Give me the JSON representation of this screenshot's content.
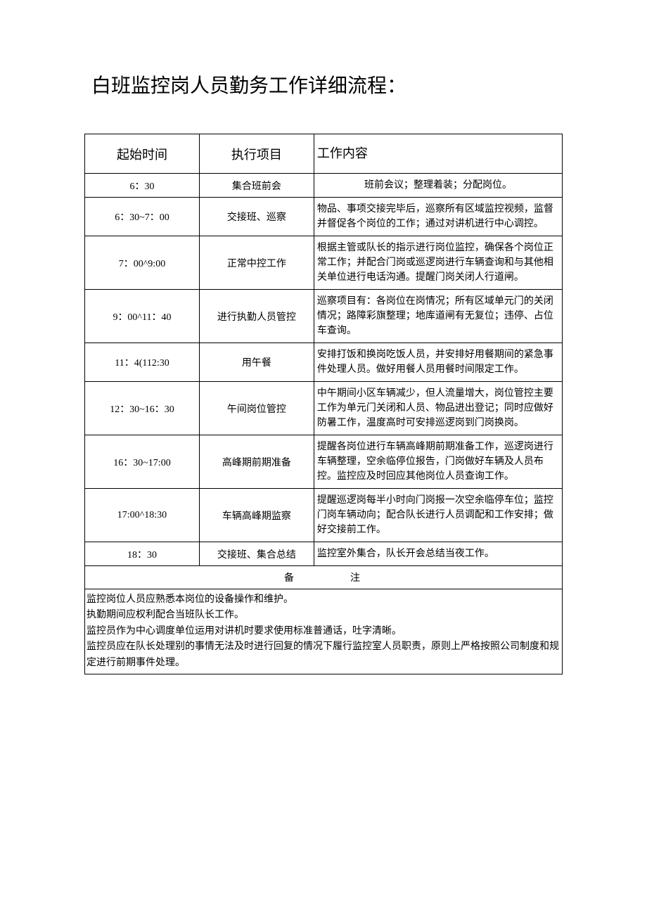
{
  "title": "白班监控岗人员勤务工作详细流程：",
  "headers": {
    "time": "起始时间",
    "item": "执行项目",
    "content": "工作内容"
  },
  "rows": [
    {
      "time": "6：30",
      "item": "集合班前会",
      "content": "班前会议；整理着装；分配岗位。"
    },
    {
      "time": "6：30~7：00",
      "item": "交接班、巡察",
      "content": "物品、事项交接完毕后，巡察所有区域监控视频，监督并督促各个岗位的工作；通过对讲机进行中心调控。"
    },
    {
      "time": "7：00^9:00",
      "item": "正常中控工作",
      "content": "根据主管或队长的指示进行岗位监控，确保各个岗位正常工作；并配合门岗或巡逻岗进行车辆查询和与其他相关单位进行电话沟通。提醒门岗关闭人行道闸。"
    },
    {
      "time": "9：00^11：40",
      "item": "进行执勤人员管控",
      "content": "巡察项目有：各岗位在岗情况；所有区域单元门的关闭情况；路障彩旗整理；地库道闸有无复位；违停、占位车查询。"
    },
    {
      "time": "11：4(112:30",
      "item": "用午餐",
      "content": "安排打饭和换岗吃饭人员，并安排好用餐期间的紧急事件处理人员。做好用餐人员用餐时间限定工作。"
    },
    {
      "time": "12：30~16：30",
      "item": "午间岗位管控",
      "content": "中午期间小区车辆减少，但人流量增大，岗位管控主要工作为单元门关闭和人员、物品进出登记；同时应做好防暑工作，温度高时可安排巡逻岗到门岗换岗。"
    },
    {
      "time": "16：30~17:00",
      "item": "高峰期前期准备",
      "content": "提醒各岗位进行车辆高峰期前期准备工作，巡逻岗进行车辆整理，空余临停位报告，门岗做好车辆及人员布控。监控应及时回应其他岗位人员查询工作。"
    },
    {
      "time": "17:00^18:30",
      "item": "车辆高峰期监察",
      "content": "提醒巡逻岗每半小时向门岗报一次空余临停车位；监控门岗车辆动向；配合队长进行人员调配和工作安排；做好交接前工作。"
    },
    {
      "time": "18：30",
      "item": "交接班、集合总结",
      "content": "监控室外集合，队长开会总结当夜工作。"
    }
  ],
  "remarks_header": "备注",
  "remarks_lines": [
    "监控岗位人员应熟悉本岗位的设备操作和维护。",
    "执勤期间应权利配合当班队长工作。",
    "监控员作为中心调度单位运用对讲机时要求使用标准普通话，吐字清晰。",
    "监控员应在队长处理别的事情无法及时进行回复的情况下履行监控室人员职责，原则上严格按照公司制度和规定进行前期事件处理。"
  ]
}
